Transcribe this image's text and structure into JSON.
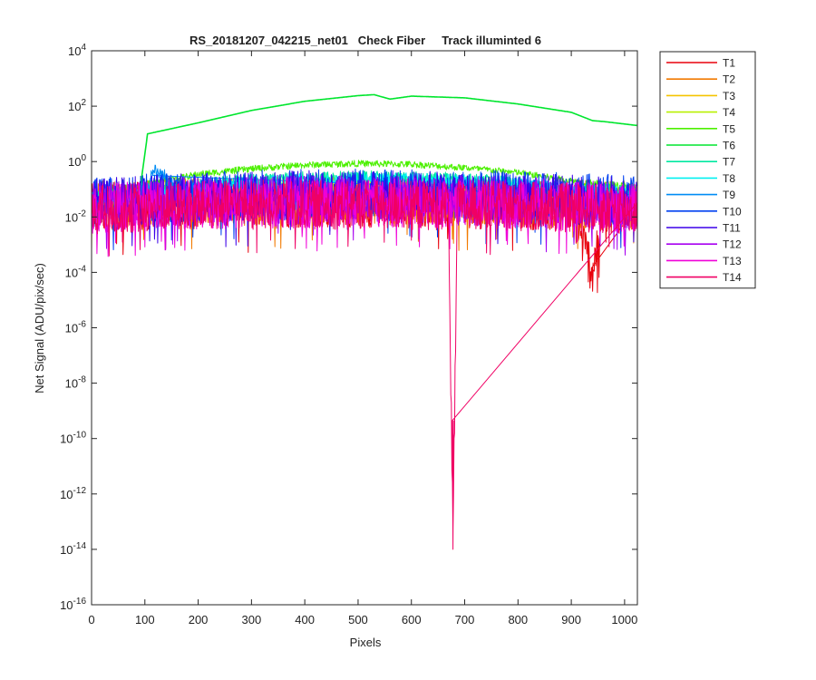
{
  "chart_data": {
    "type": "line",
    "title": "RS_20181207_042215_net01   Check Fiber     Track illuminted 6",
    "xlabel": "Pixels",
    "ylabel": "Net Signal (ADU/pix/sec)",
    "xlim": [
      0,
      1024
    ],
    "ylim": [
      1e-16,
      10000
    ],
    "y_scale": "log",
    "grid": false,
    "legend_position": "outside-right",
    "x_ticks": [
      0,
      100,
      200,
      300,
      400,
      500,
      600,
      700,
      800,
      900,
      1000
    ],
    "y_ticks": [
      {
        "base": "10",
        "exp": "-16"
      },
      {
        "base": "10",
        "exp": "-14"
      },
      {
        "base": "10",
        "exp": "-12"
      },
      {
        "base": "10",
        "exp": "-10"
      },
      {
        "base": "10",
        "exp": "-8"
      },
      {
        "base": "10",
        "exp": "-6"
      },
      {
        "base": "10",
        "exp": "-4"
      },
      {
        "base": "10",
        "exp": "-2"
      },
      {
        "base": "10",
        "exp": "0"
      },
      {
        "base": "10",
        "exp": "2"
      },
      {
        "base": "10",
        "exp": "4"
      }
    ],
    "series": [
      {
        "name": "T1",
        "color": "#e8000b",
        "x": [
          0,
          100,
          200,
          300,
          400,
          500,
          600,
          700,
          800,
          900,
          940,
          960,
          1024
        ],
        "y": [
          0.02,
          0.025,
          0.028,
          0.03,
          0.032,
          0.033,
          0.032,
          0.03,
          0.028,
          0.025,
          0.0001,
          0.022,
          0.02
        ]
      },
      {
        "name": "T2",
        "color": "#f27a00",
        "x": [
          0,
          100,
          200,
          300,
          400,
          500,
          600,
          700,
          800,
          900,
          1024
        ],
        "y": [
          0.025,
          0.03,
          0.034,
          0.037,
          0.04,
          0.041,
          0.04,
          0.038,
          0.034,
          0.03,
          0.025
        ]
      },
      {
        "name": "T3",
        "color": "#f5c400",
        "x": [
          0,
          100,
          200,
          300,
          400,
          500,
          600,
          700,
          800,
          900,
          1024
        ],
        "y": [
          0.04,
          0.06,
          0.09,
          0.11,
          0.12,
          0.12,
          0.11,
          0.1,
          0.085,
          0.065,
          0.05
        ]
      },
      {
        "name": "T4",
        "color": "#b8f000",
        "x": [
          0,
          100,
          200,
          300,
          400,
          500,
          600,
          700,
          800,
          900,
          1024
        ],
        "y": [
          0.045,
          0.07,
          0.1,
          0.12,
          0.13,
          0.13,
          0.12,
          0.11,
          0.095,
          0.075,
          0.055
        ]
      },
      {
        "name": "T5",
        "color": "#4cf000",
        "x": [
          0,
          100,
          200,
          300,
          400,
          500,
          600,
          700,
          800,
          900,
          1024
        ],
        "y": [
          0.06,
          0.15,
          0.35,
          0.55,
          0.75,
          0.85,
          0.8,
          0.6,
          0.4,
          0.2,
          0.12
        ]
      },
      {
        "name": "T6",
        "color": "#00e62e",
        "x": [
          0,
          90,
          105,
          200,
          300,
          400,
          500,
          530,
          560,
          600,
          700,
          800,
          900,
          940,
          960,
          1024
        ],
        "y": [
          0.05,
          0.07,
          10,
          25,
          70,
          150,
          240,
          260,
          180,
          230,
          200,
          120,
          60,
          30,
          28,
          20
        ]
      },
      {
        "name": "T7",
        "color": "#00e8a0",
        "x": [
          0,
          100,
          200,
          300,
          400,
          500,
          600,
          700,
          800,
          900,
          1024
        ],
        "y": [
          0.05,
          0.09,
          0.14,
          0.2,
          0.25,
          0.27,
          0.26,
          0.22,
          0.16,
          0.1,
          0.08
        ]
      },
      {
        "name": "T8",
        "color": "#00f0f0",
        "x": [
          0,
          100,
          200,
          300,
          400,
          500,
          600,
          700,
          800,
          900,
          1024
        ],
        "y": [
          0.045,
          0.08,
          0.12,
          0.17,
          0.21,
          0.23,
          0.22,
          0.19,
          0.14,
          0.09,
          0.07
        ]
      },
      {
        "name": "T9",
        "color": "#008cf5",
        "x": [
          0,
          100,
          115,
          200,
          300,
          400,
          500,
          600,
          700,
          800,
          900,
          1024
        ],
        "y": [
          0.04,
          0.05,
          0.5,
          0.07,
          0.08,
          0.09,
          0.09,
          0.09,
          0.085,
          0.075,
          0.06,
          0.05
        ]
      },
      {
        "name": "T10",
        "color": "#0040f0",
        "x": [
          0,
          100,
          200,
          300,
          400,
          500,
          600,
          700,
          800,
          900,
          1024
        ],
        "y": [
          0.035,
          0.045,
          0.055,
          0.065,
          0.07,
          0.072,
          0.07,
          0.065,
          0.058,
          0.05,
          0.04
        ]
      },
      {
        "name": "T11",
        "color": "#3c00e8",
        "x": [
          0,
          100,
          200,
          300,
          400,
          500,
          600,
          700,
          800,
          900,
          1024
        ],
        "y": [
          0.03,
          0.04,
          0.05,
          0.055,
          0.06,
          0.062,
          0.06,
          0.056,
          0.05,
          0.042,
          0.035
        ]
      },
      {
        "name": "T12",
        "color": "#a800f0",
        "x": [
          0,
          100,
          200,
          300,
          400,
          500,
          600,
          700,
          800,
          900,
          1024
        ],
        "y": [
          0.025,
          0.03,
          0.035,
          0.04,
          0.042,
          0.044,
          0.042,
          0.04,
          0.036,
          0.03,
          0.025
        ]
      },
      {
        "name": "T13",
        "color": "#f000d8",
        "x": [
          0,
          100,
          200,
          300,
          400,
          500,
          600,
          700,
          800,
          900,
          1024
        ],
        "y": [
          0.02,
          0.025,
          0.028,
          0.03,
          0.032,
          0.032,
          0.031,
          0.03,
          0.027,
          0.024,
          0.02
        ]
      },
      {
        "name": "T14",
        "color": "#f00064",
        "x": [
          0,
          100,
          200,
          300,
          400,
          500,
          600,
          670,
          678,
          686,
          700,
          800,
          900,
          1024
        ],
        "y": [
          0.018,
          0.022,
          0.025,
          0.027,
          0.028,
          0.028,
          0.027,
          0.026,
          1e-14,
          0.026,
          0.026,
          0.024,
          0.021,
          0.018
        ]
      }
    ]
  }
}
